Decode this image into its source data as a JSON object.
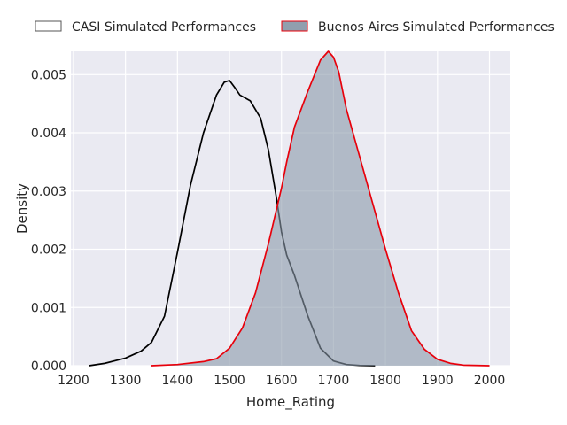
{
  "chart_data": {
    "type": "area",
    "xlabel": "Home_Rating",
    "ylabel": "Density",
    "xlim": [
      1195,
      2040
    ],
    "ylim": [
      0,
      0.0054
    ],
    "x_ticks": [
      1200,
      1300,
      1400,
      1500,
      1600,
      1700,
      1800,
      1900,
      2000
    ],
    "x_tick_labels": [
      "1200",
      "1300",
      "1400",
      "1500",
      "1600",
      "1700",
      "1800",
      "1900",
      "2000"
    ],
    "y_ticks": [
      0,
      0.001,
      0.002,
      0.003,
      0.004,
      0.005
    ],
    "y_tick_labels": [
      "0.000",
      "0.001",
      "0.002",
      "0.003",
      "0.004",
      "0.005"
    ],
    "grid": true,
    "background": "#eaeaf2",
    "legend_position": "top, above plot, 2 columns",
    "series": [
      {
        "name": "CASI Simulated Performances",
        "line_color": "#000000",
        "fill_color": "#ffffff",
        "fill_opacity": 0,
        "x": [
          1230,
          1260,
          1300,
          1330,
          1350,
          1375,
          1400,
          1425,
          1450,
          1475,
          1490,
          1500,
          1510,
          1520,
          1540,
          1560,
          1575,
          1590,
          1600,
          1610,
          1625,
          1650,
          1675,
          1700,
          1725,
          1750,
          1780
        ],
        "y": [
          0.0,
          4e-05,
          0.00013,
          0.00025,
          0.0004,
          0.00085,
          0.00195,
          0.0031,
          0.004,
          0.00465,
          0.00487,
          0.0049,
          0.00478,
          0.00465,
          0.00455,
          0.00425,
          0.0037,
          0.0029,
          0.0023,
          0.0019,
          0.00155,
          0.00087,
          0.0003,
          8e-05,
          2e-05,
          5e-06,
          0.0
        ]
      },
      {
        "name": "Buenos Aires Simulated Performances",
        "line_color": "#e8000b",
        "fill_color": "#8b9aaa",
        "fill_opacity": 0.6,
        "x": [
          1350,
          1400,
          1450,
          1475,
          1500,
          1525,
          1550,
          1575,
          1600,
          1610,
          1625,
          1650,
          1675,
          1690,
          1700,
          1710,
          1725,
          1750,
          1775,
          1800,
          1825,
          1850,
          1875,
          1900,
          1925,
          1950,
          2000
        ],
        "y": [
          0.0,
          2e-05,
          7e-05,
          0.00012,
          0.0003,
          0.00065,
          0.00125,
          0.0021,
          0.00305,
          0.0035,
          0.0041,
          0.0047,
          0.00525,
          0.0054,
          0.0053,
          0.00505,
          0.0044,
          0.0036,
          0.0028,
          0.002,
          0.00125,
          0.0006,
          0.00028,
          0.00011,
          4e-05,
          1e-05,
          0.0
        ]
      }
    ]
  }
}
